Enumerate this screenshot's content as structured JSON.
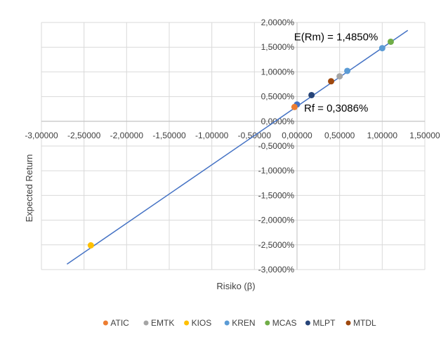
{
  "chart_data": {
    "type": "scatter",
    "xlabel": "Risiko (β)",
    "ylabel": "Expected Return",
    "xlim": [
      -3.0,
      1.5
    ],
    "ylim": [
      -0.03,
      0.02
    ],
    "x_ticks": [
      {
        "value": -3.0,
        "label": "-3,00000"
      },
      {
        "value": -2.5,
        "label": "-2,50000"
      },
      {
        "value": -2.0,
        "label": "-2,00000"
      },
      {
        "value": -1.5,
        "label": "-1,50000"
      },
      {
        "value": -1.0,
        "label": "-1,00000"
      },
      {
        "value": -0.5,
        "label": "-0,50000"
      },
      {
        "value": 0.0,
        "label": "0,00000"
      },
      {
        "value": 0.5,
        "label": "0,50000"
      },
      {
        "value": 1.0,
        "label": "1,00000"
      },
      {
        "value": 1.5,
        "label": "1,50000"
      }
    ],
    "y_ticks": [
      {
        "value": 0.02,
        "label": "2,0000%"
      },
      {
        "value": 0.015,
        "label": "1,5000%"
      },
      {
        "value": 0.01,
        "label": "1,0000%"
      },
      {
        "value": 0.005,
        "label": "0,5000%"
      },
      {
        "value": 0.0,
        "label": "0,0000%"
      },
      {
        "value": -0.005,
        "label": "-0,5000%"
      },
      {
        "value": -0.01,
        "label": "-1,0000%"
      },
      {
        "value": -0.015,
        "label": "-1,5000%"
      },
      {
        "value": -0.02,
        "label": "-2,0000%"
      },
      {
        "value": -0.025,
        "label": "-2,5000%"
      },
      {
        "value": -0.03,
        "label": "-3,0000%"
      }
    ],
    "grid": true,
    "legend_position": "bottom",
    "line": {
      "color": "#4472C4",
      "x": [
        -2.7,
        1.3
      ],
      "y": [
        -0.0289,
        0.0184
      ]
    },
    "series": [
      {
        "name": "ATIC",
        "color": "#ED7D31",
        "x": [
          -0.03
        ],
        "y": [
          0.0029
        ]
      },
      {
        "name": "EMTK",
        "color": "#A5A5A5",
        "x": [
          0.5
        ],
        "y": [
          0.0091
        ]
      },
      {
        "name": "KIOS",
        "color": "#FFC000",
        "x": [
          -2.42
        ],
        "y": [
          -0.0251
        ]
      },
      {
        "name": "KREN",
        "color": "#5B9BD5",
        "x": [
          0.59,
          1.0
        ],
        "y": [
          0.0102,
          0.0148
        ]
      },
      {
        "name": "MCAS",
        "color": "#70AD47",
        "x": [
          1.1
        ],
        "y": [
          0.0161
        ]
      },
      {
        "name": "MLPT",
        "color": "#264478",
        "x": [
          0.17
        ],
        "y": [
          0.0053
        ]
      },
      {
        "name": "MTDL",
        "color": "#9E480E",
        "x": [
          0.4
        ],
        "y": [
          0.0081
        ]
      }
    ],
    "extra_point": {
      "color": "#4472C4",
      "x": 0.0,
      "y": 0.0034
    },
    "annotations": [
      {
        "text": "E(Rm) = 1,4850%",
        "x": 1.0,
        "y": 0.01485,
        "anchor": "left-above"
      },
      {
        "text": "Rf = 0,3086%",
        "x": 0.0,
        "y": 0.003086,
        "anchor": "right-below"
      }
    ]
  }
}
